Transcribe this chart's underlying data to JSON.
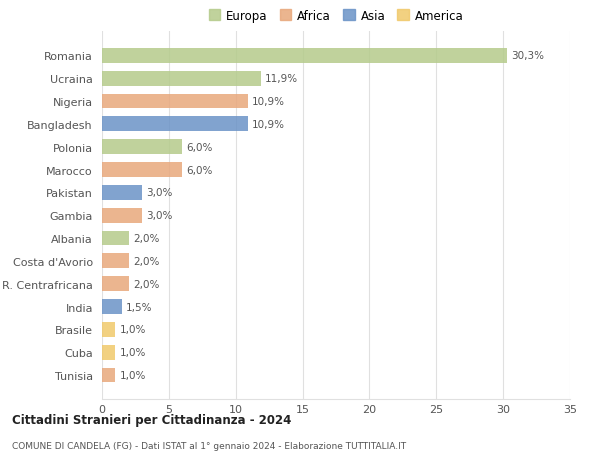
{
  "countries": [
    "Romania",
    "Ucraina",
    "Nigeria",
    "Bangladesh",
    "Polonia",
    "Marocco",
    "Pakistan",
    "Gambia",
    "Albania",
    "Costa d'Avorio",
    "R. Centrafricana",
    "India",
    "Brasile",
    "Cuba",
    "Tunisia"
  ],
  "values": [
    30.3,
    11.9,
    10.9,
    10.9,
    6.0,
    6.0,
    3.0,
    3.0,
    2.0,
    2.0,
    2.0,
    1.5,
    1.0,
    1.0,
    1.0
  ],
  "labels": [
    "30,3%",
    "11,9%",
    "10,9%",
    "10,9%",
    "6,0%",
    "6,0%",
    "3,0%",
    "3,0%",
    "2,0%",
    "2,0%",
    "2,0%",
    "1,5%",
    "1,0%",
    "1,0%",
    "1,0%"
  ],
  "colors": [
    "#b5cb8b",
    "#b5cb8b",
    "#e8a87c",
    "#6b93c7",
    "#b5cb8b",
    "#e8a87c",
    "#6b93c7",
    "#e8a87c",
    "#b5cb8b",
    "#e8a87c",
    "#e8a87c",
    "#6b93c7",
    "#f0c96b",
    "#f0c96b",
    "#e8a87c"
  ],
  "legend_labels": [
    "Europa",
    "Africa",
    "Asia",
    "America"
  ],
  "legend_colors": [
    "#b5cb8b",
    "#e8a87c",
    "#6b93c7",
    "#f0c96b"
  ],
  "title": "Cittadini Stranieri per Cittadinanza - 2024",
  "subtitle": "COMUNE DI CANDELA (FG) - Dati ISTAT al 1° gennaio 2024 - Elaborazione TUTTITALIA.IT",
  "xlim": [
    0,
    35
  ],
  "xticks": [
    0,
    5,
    10,
    15,
    20,
    25,
    30,
    35
  ],
  "background_color": "#ffffff",
  "grid_color": "#e0e0e0",
  "bar_height": 0.65
}
